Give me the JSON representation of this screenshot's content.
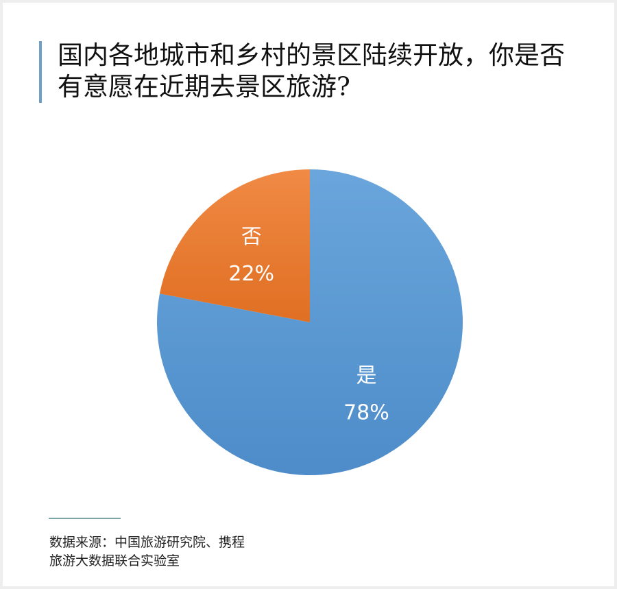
{
  "chart_data": {
    "type": "pie",
    "title": "国内各地城市和乡村的景区陆续开放，你是否有意愿在近期去景区旅游?",
    "title_lines": [
      "国内各地城市和乡村的景区陆续开放，你是否",
      "有意愿在近期去景区旅游?"
    ],
    "slices": [
      {
        "label": "是",
        "value": 78,
        "value_label": "78%",
        "color": "#5b9bd5"
      },
      {
        "label": "否",
        "value": 22,
        "value_label": "22%",
        "color": "#ed7d31"
      }
    ],
    "start": "top",
    "direction": "clockwise"
  },
  "source": {
    "lines": [
      "数据来源：中国旅游研究院、携程",
      "旅游大数据联合实验室"
    ]
  }
}
